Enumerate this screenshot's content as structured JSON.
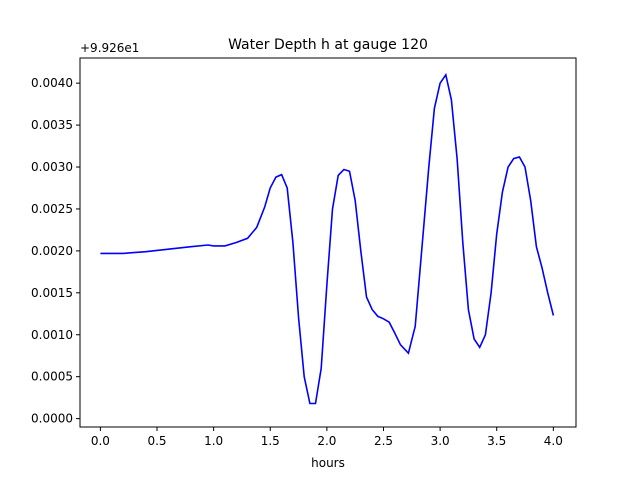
{
  "chart_data": {
    "type": "line",
    "title": "Water Depth h at gauge 120",
    "xlabel": "hours",
    "ylabel": "",
    "y_offset_label": "+9.926e1",
    "xlim": [
      -0.18,
      4.2
    ],
    "ylim": [
      -0.0001,
      0.0043
    ],
    "x_ticks": [
      0.0,
      0.5,
      1.0,
      1.5,
      2.0,
      2.5,
      3.0,
      3.5,
      4.0
    ],
    "x_tick_labels": [
      "0.0",
      "0.5",
      "1.0",
      "1.5",
      "2.0",
      "2.5",
      "3.0",
      "3.5",
      "4.0"
    ],
    "y_ticks": [
      0.0,
      0.0005,
      0.001,
      0.0015,
      0.002,
      0.0025,
      0.003,
      0.0035,
      0.004
    ],
    "y_tick_labels": [
      "0.0000",
      "0.0005",
      "0.0010",
      "0.0015",
      "0.0020",
      "0.0025",
      "0.0030",
      "0.0035",
      "0.0040"
    ],
    "grid": false,
    "colors": {
      "line": "#0000ff",
      "axes": "#000000",
      "background": "#ffffff"
    },
    "series": [
      {
        "x": [
          0.0,
          0.2,
          0.4,
          0.6,
          0.8,
          0.95,
          1.0,
          1.1,
          1.2,
          1.3,
          1.38,
          1.45,
          1.5,
          1.55,
          1.6,
          1.65,
          1.7,
          1.75,
          1.8,
          1.85,
          1.9,
          1.95,
          2.0,
          2.05,
          2.1,
          2.15,
          2.2,
          2.25,
          2.3,
          2.35,
          2.4,
          2.45,
          2.5,
          2.55,
          2.6,
          2.65,
          2.72,
          2.78,
          2.85,
          2.9,
          2.95,
          3.0,
          3.05,
          3.1,
          3.15,
          3.2,
          3.25,
          3.3,
          3.35,
          3.4,
          3.45,
          3.5,
          3.55,
          3.6,
          3.65,
          3.7,
          3.75,
          3.8,
          3.85,
          3.9,
          3.95,
          4.0
        ],
        "values": [
          0.00197,
          0.00197,
          0.00199,
          0.00202,
          0.00205,
          0.00207,
          0.00206,
          0.00206,
          0.0021,
          0.00215,
          0.00228,
          0.00252,
          0.00275,
          0.00288,
          0.00291,
          0.00275,
          0.0021,
          0.0012,
          0.0005,
          0.00018,
          0.00018,
          0.0006,
          0.0016,
          0.0025,
          0.0029,
          0.00297,
          0.00295,
          0.0026,
          0.002,
          0.00145,
          0.0013,
          0.00122,
          0.00119,
          0.00115,
          0.00102,
          0.00088,
          0.00078,
          0.0011,
          0.0022,
          0.003,
          0.0037,
          0.004,
          0.0041,
          0.0038,
          0.0031,
          0.0021,
          0.0013,
          0.00095,
          0.00085,
          0.001,
          0.0015,
          0.0022,
          0.0027,
          0.003,
          0.0031,
          0.00312,
          0.003,
          0.0026,
          0.00205,
          0.0018,
          0.0015,
          0.00123
        ]
      }
    ]
  }
}
